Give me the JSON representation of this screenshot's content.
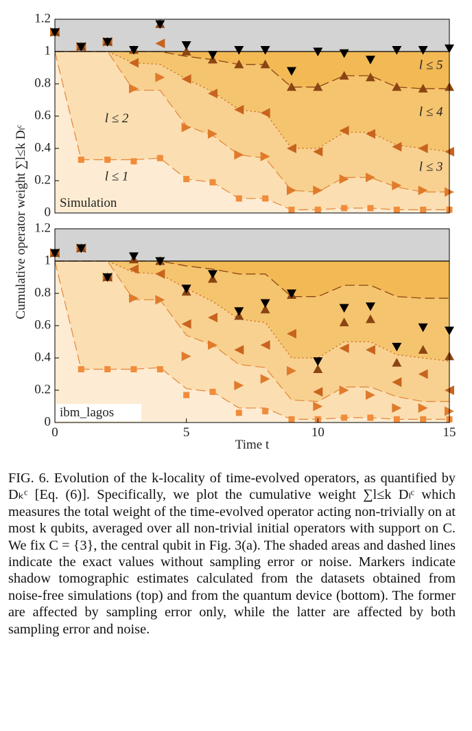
{
  "chart_data": [
    {
      "type": "line",
      "panel_label": "Simulation",
      "panel_font": "serif",
      "ylabel": "Cumulative operator weight ∑l≤k Dₗᶜ",
      "x": [
        0,
        1,
        2,
        3,
        4,
        5,
        6,
        7,
        8,
        9,
        10,
        11,
        12,
        13,
        14,
        15
      ],
      "xlim": [
        0,
        15
      ],
      "ylim": [
        0,
        1.2
      ],
      "yticks": [
        0,
        0.2,
        0.4,
        0.6,
        0.8,
        1,
        1.2
      ],
      "background": "#d3d3d3",
      "exact": [
        {
          "name": "l ≤ 1",
          "fill": "#fdecd3",
          "color": "#e58a3f",
          "linestyle": "dashed",
          "values": [
            1,
            0.33,
            0.33,
            0.33,
            0.34,
            0.21,
            0.19,
            0.09,
            0.09,
            0.02,
            0.02,
            0.03,
            0.03,
            0.02,
            0.02,
            0.02
          ]
        },
        {
          "name": "l ≤ 2",
          "fill": "#fbdfb2",
          "color": "#e58a3f",
          "linestyle": "dashed",
          "values": [
            1,
            1,
            1,
            0.76,
            0.76,
            0.54,
            0.48,
            0.36,
            0.34,
            0.14,
            0.13,
            0.22,
            0.22,
            0.16,
            0.13,
            0.13
          ]
        },
        {
          "name": "l ≤ 3",
          "fill": "#f8d190",
          "color": "#c8641e",
          "linestyle": "dotted",
          "values": [
            1,
            1,
            1,
            0.93,
            0.92,
            0.83,
            0.75,
            0.64,
            0.62,
            0.4,
            0.4,
            0.5,
            0.5,
            0.42,
            0.4,
            0.38
          ]
        },
        {
          "name": "l ≤ 4",
          "fill": "#f5c46e",
          "color": "#8b4513",
          "linestyle": "dashed",
          "values": [
            1,
            1,
            1,
            1,
            1,
            0.97,
            0.95,
            0.92,
            0.92,
            0.78,
            0.78,
            0.85,
            0.85,
            0.78,
            0.77,
            0.77
          ]
        },
        {
          "name": "l ≤ 5",
          "fill": "#f2b955",
          "color": "#000000",
          "linestyle": "solid",
          "values": [
            1,
            1,
            1,
            1,
            1,
            1,
            1,
            1,
            1,
            1,
            1,
            1,
            1,
            1,
            1,
            1
          ]
        }
      ],
      "series": [
        {
          "marker": "square",
          "color": "#f08c3a",
          "values": [
            1.12,
            0.33,
            0.33,
            0.32,
            0.34,
            0.21,
            0.19,
            0.09,
            0.09,
            0.02,
            0.02,
            0.03,
            0.03,
            0.02,
            0.02,
            0.02
          ]
        },
        {
          "marker": "right",
          "color": "#e07b2c",
          "values": [
            1.12,
            1.03,
            1.06,
            0.77,
            0.84,
            0.53,
            0.49,
            0.36,
            0.35,
            0.14,
            0.14,
            0.21,
            0.22,
            0.17,
            0.14,
            0.13
          ]
        },
        {
          "marker": "left",
          "color": "#c8641e",
          "values": [
            1.12,
            1.03,
            1.06,
            0.93,
            1.05,
            0.83,
            0.74,
            0.64,
            0.62,
            0.4,
            0.38,
            0.51,
            0.49,
            0.41,
            0.4,
            0.38
          ]
        },
        {
          "marker": "up",
          "color": "#8b4513",
          "values": [
            1.12,
            1.03,
            1.06,
            1.01,
            1.17,
            1,
            0.95,
            0.92,
            0.92,
            0.78,
            0.78,
            0.85,
            0.84,
            0.78,
            0.77,
            0.78
          ]
        },
        {
          "marker": "down",
          "color": "#000000",
          "values": [
            1.12,
            1.03,
            1.06,
            1.01,
            1.17,
            1.04,
            0.98,
            1.01,
            1.01,
            0.88,
            1,
            0.99,
            0.95,
            1.01,
            1.01,
            1.02
          ]
        }
      ]
    },
    {
      "type": "line",
      "panel_label": "ibm_lagos",
      "panel_font": "monospace",
      "xlabel": "Time t",
      "x": [
        0,
        1,
        2,
        3,
        4,
        5,
        6,
        7,
        8,
        9,
        10,
        11,
        12,
        13,
        14,
        15
      ],
      "xlim": [
        0,
        15
      ],
      "xticks": [
        0,
        5,
        10,
        15
      ],
      "ylim": [
        0,
        1.2
      ],
      "yticks": [
        0,
        0.2,
        0.4,
        0.6,
        0.8,
        1,
        1.2
      ],
      "background": "#d3d3d3",
      "exact": [
        {
          "fill": "#fdecd3",
          "color": "#e58a3f",
          "linestyle": "dashed",
          "values": [
            1,
            0.33,
            0.33,
            0.33,
            0.34,
            0.21,
            0.19,
            0.09,
            0.09,
            0.02,
            0.02,
            0.03,
            0.03,
            0.02,
            0.02,
            0.02
          ]
        },
        {
          "fill": "#fbdfb2",
          "color": "#e58a3f",
          "linestyle": "dashed",
          "values": [
            1,
            1,
            1,
            0.76,
            0.76,
            0.54,
            0.48,
            0.36,
            0.34,
            0.14,
            0.13,
            0.22,
            0.22,
            0.16,
            0.13,
            0.13
          ]
        },
        {
          "fill": "#f8d190",
          "color": "#c8641e",
          "linestyle": "dotted",
          "values": [
            1,
            1,
            1,
            0.93,
            0.92,
            0.83,
            0.75,
            0.64,
            0.62,
            0.4,
            0.4,
            0.5,
            0.5,
            0.42,
            0.4,
            0.38
          ]
        },
        {
          "fill": "#f5c46e",
          "color": "#8b4513",
          "linestyle": "dashed",
          "values": [
            1,
            1,
            1,
            1,
            1,
            0.97,
            0.95,
            0.92,
            0.92,
            0.78,
            0.78,
            0.85,
            0.85,
            0.78,
            0.77,
            0.77
          ]
        },
        {
          "fill": "#f2b955",
          "color": "#000000",
          "linestyle": "solid",
          "values": [
            1,
            1,
            1,
            1,
            1,
            1,
            1,
            1,
            1,
            1,
            1,
            1,
            1,
            1,
            1,
            1
          ]
        }
      ],
      "series": [
        {
          "marker": "square",
          "color": "#f08c3a",
          "values": [
            1.05,
            0.33,
            0.33,
            0.33,
            0.33,
            0.17,
            0.19,
            0.06,
            0.07,
            0.02,
            0.02,
            0.03,
            0.03,
            0.02,
            0.02,
            0.02
          ]
        },
        {
          "marker": "right",
          "color": "#e07b2c",
          "values": [
            1.05,
            1.08,
            0.9,
            0.77,
            0.76,
            0.41,
            0.48,
            0.23,
            0.27,
            0.32,
            0.1,
            0.2,
            0.17,
            0.09,
            0.09,
            0.07
          ]
        },
        {
          "marker": "left",
          "color": "#c8641e",
          "values": [
            1.05,
            1.08,
            0.9,
            0.95,
            0.92,
            0.61,
            0.65,
            0.45,
            0.48,
            0.55,
            0.19,
            0.46,
            0.45,
            0.25,
            0.3,
            0.2
          ]
        },
        {
          "marker": "up",
          "color": "#8b4513",
          "values": [
            1.05,
            1.08,
            0.9,
            1.01,
            1,
            0.81,
            0.89,
            0.66,
            0.7,
            0.79,
            0.33,
            0.62,
            0.64,
            0.37,
            0.45,
            0.41
          ]
        },
        {
          "marker": "down",
          "color": "#000000",
          "values": [
            1.05,
            1.08,
            0.9,
            1.03,
            1,
            0.83,
            0.92,
            0.69,
            0.74,
            0.8,
            0.38,
            0.71,
            0.72,
            0.47,
            0.59,
            0.57
          ]
        }
      ]
    }
  ],
  "caption": "FIG. 6. Evolution of the k-locality of time-evolved operators, as quantified by Dₖᶜ [Eq. (6)]. Specifically, we plot the cumulative weight ∑l≤k Dₗᶜ which measures the total weight of the time-evolved operator acting non-trivially on at most k qubits, averaged over all non-trivial initial operators with support on C. We fix C = {3}, the central qubit in Fig. 3(a). The shaded areas and dashed lines indicate the exact values without sampling error or noise. Markers indicate shadow tomographic estimates calculated from the datasets obtained from noise-free simulations (top) and from the quantum device (bottom). The former are affected by sampling error only, while the latter are affected by both sampling error and noise."
}
